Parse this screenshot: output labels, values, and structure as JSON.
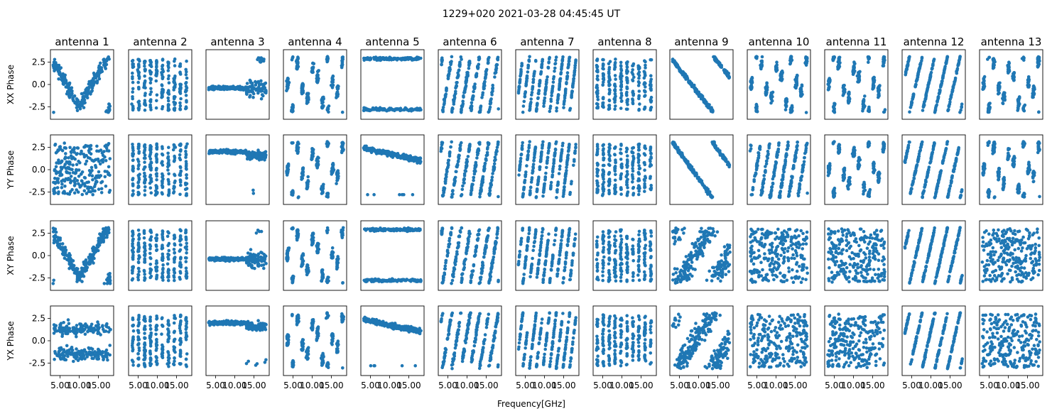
{
  "figure": {
    "suptitle": "1229+020 2021-03-28 04:45:45 UT",
    "xlabel": "Frequency[GHz]"
  },
  "colors": {
    "marker": "#1f77b4",
    "axes": "#000000",
    "text": "#000000"
  },
  "chart_data": {
    "type": "scatter",
    "layout": "4 rows x 13 columns of subplots (shared x and y axes)",
    "columns": [
      "antenna 1",
      "antenna 2",
      "antenna 3",
      "antenna 4",
      "antenna 5",
      "antenna 6",
      "antenna 7",
      "antenna 8",
      "antenna 9",
      "antenna 10",
      "antenna 11",
      "antenna 12",
      "antenna 13"
    ],
    "rows": [
      "XX Phase",
      "YY Phase",
      "XY Phase",
      "YX Phase"
    ],
    "xlim": [
      2.5,
      19.0
    ],
    "ylim": [
      -3.9,
      3.9
    ],
    "xticks": [
      5.0,
      10.0,
      15.0
    ],
    "xtick_labels": [
      "5.00",
      "10.00",
      "15.00"
    ],
    "yticks": [
      2.5,
      0.0,
      -2.5
    ],
    "ytick_labels": [
      "2.5",
      "0.0",
      "-2.5"
    ],
    "marker": "circle",
    "patterns": [
      [
        "noisy-v",
        "bands10",
        "flat-drop",
        "bands6",
        "bimodal",
        "diag6",
        "diag4",
        "bands10",
        "diag-neg",
        "bands6",
        "bands6",
        "diag3",
        "bands6"
      ],
      [
        "noisy-bands",
        "bands10",
        "flat-high",
        "bands6",
        "flat-high-decline",
        "diag6",
        "diag4",
        "bands10",
        "diag-neg2",
        "diag6",
        "bands6",
        "diag3",
        "bands6"
      ],
      [
        "noisy-v",
        "bands10",
        "flat-drop",
        "bands6",
        "bimodal",
        "diag6",
        "diag4",
        "bands10",
        "noisy-mix",
        "uniform",
        "uniform",
        "diag3",
        "uniform"
      ],
      [
        "noisy-split",
        "bands10",
        "flat-high",
        "bands6",
        "flat-high-decline",
        "diag6",
        "diag4",
        "bands10",
        "noisy-mix",
        "uniform",
        "uniform",
        "diag3",
        "uniform"
      ]
    ]
  }
}
